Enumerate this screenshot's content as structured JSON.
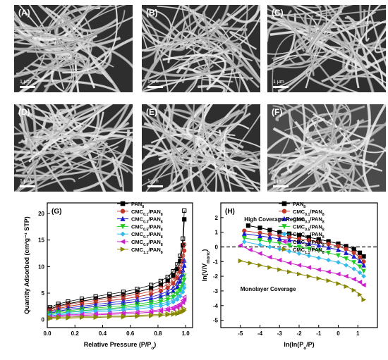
{
  "micrographs": [
    {
      "label": "(A)",
      "scale": "1 μm"
    },
    {
      "label": "(B)",
      "scale": "1 μm"
    },
    {
      "label": "(C)",
      "scale": "1 μm"
    },
    {
      "label": "(D)",
      "scale": "1 μm"
    },
    {
      "label": "(E)",
      "scale": "1 μm"
    },
    {
      "label": "(F)",
      "scale": "1 μm"
    }
  ],
  "chart_data": [
    {
      "type": "line",
      "panel_label": "(G)",
      "xlabel": "Relative Pressure (P/P",
      "xlabel_sub": "o",
      "xlabel_end": ")",
      "ylabel": "Quantity Adsorbed (cm³g⁻¹ STP)",
      "xlim": [
        0.0,
        1.05
      ],
      "ylim": [
        -1.5,
        22
      ],
      "xticks": [
        0.0,
        0.2,
        0.4,
        0.6,
        0.8,
        1.0
      ],
      "xtick_labels": [
        "0.0",
        "0.2",
        "0.4",
        "0.6",
        "0.8",
        "1.0"
      ],
      "yticks": [
        0,
        5,
        10,
        15,
        20
      ],
      "ytick_labels": [
        "0",
        "5",
        "10",
        "15",
        "20"
      ],
      "legend_position": "top-right",
      "series": [
        {
          "name": "PAN",
          "sub": "8",
          "color": "#000000",
          "marker": "square",
          "x": [
            0.02,
            0.08,
            0.15,
            0.25,
            0.35,
            0.45,
            0.55,
            0.65,
            0.75,
            0.82,
            0.87,
            0.91,
            0.94,
            0.96,
            0.98,
            0.99
          ],
          "y": [
            2.0,
            2.6,
            3.0,
            3.5,
            3.9,
            4.3,
            4.7,
            5.2,
            5.9,
            6.6,
            7.3,
            8.3,
            9.5,
            11.0,
            14.0,
            18.9
          ]
        },
        {
          "name": "CMC",
          "sub": "0.1",
          "sub_end": "/PAN",
          "sub2": "8",
          "color": "#c0392b",
          "marker": "circle",
          "x": [
            0.02,
            0.08,
            0.15,
            0.25,
            0.35,
            0.45,
            0.55,
            0.65,
            0.75,
            0.82,
            0.87,
            0.91,
            0.94,
            0.96,
            0.98,
            0.99
          ],
          "y": [
            1.6,
            2.1,
            2.5,
            2.9,
            3.2,
            3.6,
            3.9,
            4.3,
            4.8,
            5.4,
            6.0,
            6.8,
            7.8,
            9.0,
            11.0,
            13.0
          ]
        },
        {
          "name": "CMC",
          "sub": "0.3",
          "sub_end": "/PAN",
          "sub2": "8",
          "color": "#1a1acc",
          "marker": "triangle-up",
          "x": [
            0.02,
            0.08,
            0.15,
            0.25,
            0.35,
            0.45,
            0.55,
            0.65,
            0.75,
            0.82,
            0.87,
            0.91,
            0.94,
            0.96,
            0.98,
            0.99
          ],
          "y": [
            1.2,
            1.6,
            1.9,
            2.2,
            2.5,
            2.8,
            3.1,
            3.4,
            3.8,
            4.3,
            4.8,
            5.4,
            6.2,
            7.2,
            8.5,
            10.2
          ]
        },
        {
          "name": "CMC",
          "sub": "0.5",
          "sub_end": "/PAN",
          "sub2": "8",
          "color": "#22cc22",
          "marker": "triangle-down",
          "x": [
            0.02,
            0.08,
            0.15,
            0.25,
            0.35,
            0.45,
            0.55,
            0.65,
            0.75,
            0.82,
            0.87,
            0.91,
            0.94,
            0.96,
            0.98,
            0.99
          ],
          "y": [
            0.9,
            1.2,
            1.4,
            1.7,
            1.9,
            2.1,
            2.3,
            2.6,
            2.9,
            3.3,
            3.7,
            4.2,
            4.8,
            5.5,
            6.5,
            7.5
          ]
        },
        {
          "name": "CMC",
          "sub": "0.7",
          "sub_end": "/PAN",
          "sub2": "8",
          "color": "#33bbee",
          "marker": "diamond",
          "x": [
            0.02,
            0.08,
            0.15,
            0.25,
            0.35,
            0.45,
            0.55,
            0.65,
            0.75,
            0.82,
            0.87,
            0.91,
            0.94,
            0.96,
            0.98,
            0.99
          ],
          "y": [
            0.7,
            0.9,
            1.1,
            1.3,
            1.5,
            1.6,
            1.8,
            2.0,
            2.3,
            2.6,
            2.9,
            3.3,
            3.8,
            4.4,
            5.2,
            6.0
          ]
        },
        {
          "name": "CMC",
          "sub": "0.9",
          "sub_end": "/PAN",
          "sub2": "8",
          "color": "#cc22cc",
          "marker": "triangle-left",
          "x": [
            0.02,
            0.08,
            0.15,
            0.25,
            0.35,
            0.45,
            0.55,
            0.65,
            0.75,
            0.82,
            0.87,
            0.91,
            0.94,
            0.96,
            0.98,
            0.99
          ],
          "y": [
            0.4,
            0.6,
            0.7,
            0.8,
            0.9,
            1.0,
            1.1,
            1.2,
            1.4,
            1.6,
            1.8,
            2.0,
            2.3,
            2.6,
            3.2,
            3.8
          ]
        },
        {
          "name": "CMC",
          "sub": "1.1",
          "sub_end": "/PAN",
          "sub2": "8",
          "color": "#888800",
          "marker": "triangle-right",
          "x": [
            0.02,
            0.08,
            0.15,
            0.25,
            0.35,
            0.45,
            0.55,
            0.65,
            0.75,
            0.82,
            0.87,
            0.91,
            0.94,
            0.96,
            0.98,
            0.99
          ],
          "y": [
            0.2,
            0.3,
            0.3,
            0.4,
            0.4,
            0.5,
            0.5,
            0.6,
            0.7,
            0.8,
            0.9,
            1.0,
            1.1,
            1.3,
            1.5,
            1.8
          ]
        }
      ]
    },
    {
      "type": "line",
      "panel_label": "(H)",
      "xlabel": "ln(ln(P",
      "xlabel_sub": "o",
      "xlabel_end": "/P)",
      "ylabel": "ln(V/V",
      "ylabel_sub": "mono",
      "ylabel_end": ")",
      "xlim": [
        -6,
        2
      ],
      "ylim": [
        -5.5,
        3
      ],
      "xticks": [
        -5,
        -4,
        -3,
        -2,
        -1,
        0,
        1
      ],
      "xtick_labels": [
        "-5",
        "-4",
        "-3",
        "-2",
        "-1",
        "0",
        "1"
      ],
      "yticks": [
        -5,
        -4,
        -3,
        -2,
        -1,
        0,
        1,
        2
      ],
      "ytick_labels": [
        "-5",
        "-4",
        "-3",
        "-2",
        "-1",
        "0",
        "1",
        "2"
      ],
      "reference_line_y": 0,
      "annotations": [
        {
          "text": "High Coverage Region",
          "x": -4.8,
          "y": 1.75
        },
        {
          "text": "Monolayer Coverage",
          "x": -5.0,
          "y": -3.0
        }
      ],
      "legend_position": "top-right",
      "series": [
        {
          "name": "PAN",
          "sub": "8",
          "color": "#000000",
          "marker": "square",
          "x": [
            -4.6,
            -4.0,
            -3.5,
            -3.0,
            -2.5,
            -2.0,
            -1.5,
            -1.0,
            -0.5,
            0.0,
            0.4,
            0.8,
            1.1,
            1.3
          ],
          "y": [
            1.45,
            1.3,
            1.15,
            1.0,
            0.9,
            0.78,
            0.65,
            0.52,
            0.38,
            0.22,
            0.05,
            -0.15,
            -0.4,
            -0.65
          ]
        },
        {
          "name": "CMC",
          "sub": "0.1",
          "sub_end": "/PAN",
          "sub2": "8",
          "color": "#c0392b",
          "marker": "circle",
          "x": [
            -4.8,
            -4.0,
            -3.5,
            -3.0,
            -2.5,
            -2.0,
            -1.5,
            -1.0,
            -0.5,
            0.0,
            0.4,
            0.8,
            1.1,
            1.3
          ],
          "y": [
            1.1,
            0.95,
            0.85,
            0.75,
            0.65,
            0.55,
            0.45,
            0.32,
            0.2,
            0.05,
            -0.15,
            -0.4,
            -0.7,
            -1.0
          ]
        },
        {
          "name": "CMC",
          "sub": "0.3",
          "sub_end": "/PAN",
          "sub2": "8",
          "color": "#1a1acc",
          "marker": "triangle-up",
          "x": [
            -4.8,
            -4.0,
            -3.5,
            -3.0,
            -2.5,
            -2.0,
            -1.5,
            -1.0,
            -0.5,
            0.0,
            0.4,
            0.8,
            1.1,
            1.3
          ],
          "y": [
            0.9,
            0.75,
            0.65,
            0.55,
            0.45,
            0.35,
            0.22,
            0.1,
            -0.05,
            -0.2,
            -0.4,
            -0.65,
            -0.95,
            -1.25
          ]
        },
        {
          "name": "CMC",
          "sub": "0.5",
          "sub_end": "/PAN",
          "sub2": "8",
          "color": "#22cc22",
          "marker": "triangle-down",
          "x": [
            -4.8,
            -4.0,
            -3.5,
            -3.0,
            -2.5,
            -2.0,
            -1.5,
            -1.0,
            -0.5,
            0.0,
            0.4,
            0.8,
            1.1,
            1.3
          ],
          "y": [
            0.6,
            0.45,
            0.35,
            0.25,
            0.1,
            0.0,
            -0.12,
            -0.25,
            -0.4,
            -0.58,
            -0.8,
            -1.05,
            -1.35,
            -1.65
          ]
        },
        {
          "name": "CMC",
          "sub": "0.7",
          "sub_end": "/PAN",
          "sub2": "8",
          "color": "#33bbee",
          "marker": "diamond",
          "x": [
            -4.8,
            -4.0,
            -3.5,
            -3.0,
            -2.5,
            -2.0,
            -1.5,
            -1.0,
            -0.5,
            0.0,
            0.4,
            0.8,
            1.1,
            1.3
          ],
          "y": [
            0.35,
            0.15,
            0.0,
            -0.15,
            -0.3,
            -0.45,
            -0.6,
            -0.75,
            -0.9,
            -1.05,
            -1.25,
            -1.5,
            -1.75,
            -2.0
          ]
        },
        {
          "name": "CMC",
          "sub": "0.9",
          "sub_end": "/PAN",
          "sub2": "8",
          "color": "#cc22cc",
          "marker": "triangle-left",
          "x": [
            -5.0,
            -4.5,
            -4.0,
            -3.5,
            -3.0,
            -2.5,
            -2.0,
            -1.5,
            -1.0,
            -0.5,
            0.0,
            0.4,
            0.8,
            1.1,
            1.3
          ],
          "y": [
            0.1,
            -0.2,
            -0.45,
            -0.7,
            -0.9,
            -1.1,
            -1.25,
            -1.4,
            -1.55,
            -1.7,
            -1.85,
            -2.0,
            -2.2,
            -2.4,
            -2.6
          ]
        },
        {
          "name": "CMC",
          "sub": "1.1",
          "sub_end": "/PAN",
          "sub2": "8",
          "color": "#888800",
          "marker": "triangle-right",
          "x": [
            -5.0,
            -4.5,
            -4.0,
            -3.5,
            -3.0,
            -2.5,
            -2.0,
            -1.5,
            -1.0,
            -0.5,
            0.0,
            0.4,
            0.8,
            1.1,
            1.3
          ],
          "y": [
            -0.95,
            -1.1,
            -1.25,
            -1.4,
            -1.55,
            -1.7,
            -1.85,
            -2.0,
            -2.15,
            -2.3,
            -2.5,
            -2.7,
            -2.95,
            -3.25,
            -3.6
          ]
        }
      ]
    }
  ]
}
